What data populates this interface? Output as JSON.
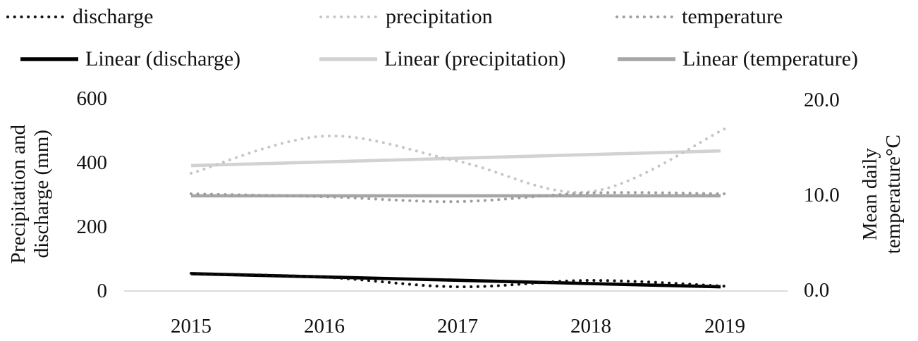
{
  "legend": {
    "items": [
      {
        "label": "discharge",
        "color": "#111111",
        "style": "dotted"
      },
      {
        "label": "precipitation",
        "color": "#c6c6c6",
        "style": "dotted"
      },
      {
        "label": "temperature",
        "color": "#9e9e9e",
        "style": "dotted"
      },
      {
        "label": "Linear (discharge)",
        "color": "#000000",
        "style": "solid"
      },
      {
        "label": "Linear (precipitation)",
        "color": "#d2d2d2",
        "style": "solid"
      },
      {
        "label": "Linear (temperature)",
        "color": "#a6a6a6",
        "style": "solid"
      }
    ]
  },
  "chart_data": {
    "type": "line",
    "x_labels": [
      "2015",
      "2016",
      "2017",
      "2018",
      "2019"
    ],
    "left_axis": {
      "title": "Precipitation and discharge (mm)",
      "title_lines": [
        "Precipitation and",
        "discharge (mm)"
      ],
      "range": [
        0,
        600
      ],
      "tick_labels": [
        "600",
        "400",
        "200",
        "0"
      ]
    },
    "right_axis": {
      "title": "Mean daily temperature°C",
      "title_lines": [
        "Mean daily",
        "temperature°C"
      ],
      "range": [
        0,
        20
      ],
      "tick_labels": [
        "20.0",
        "10.0",
        "0.0"
      ]
    },
    "grid": false,
    "legend_position": "top",
    "baseline_color": "#dcdcdc",
    "series": [
      {
        "name": "discharge",
        "axis": "left",
        "style": "dotted",
        "smooth": true,
        "trend": false,
        "color": "#111111",
        "values": [
          55,
          43,
          13,
          33,
          15
        ]
      },
      {
        "name": "precipitation",
        "axis": "left",
        "style": "dotted",
        "smooth": true,
        "trend": false,
        "color": "#c6c6c6",
        "values": [
          367,
          483,
          405,
          310,
          506
        ]
      },
      {
        "name": "temperature",
        "axis": "right",
        "style": "dotted",
        "smooth": true,
        "trend": false,
        "color": "#9e9e9e",
        "values": [
          10.1,
          9.8,
          9.3,
          10.2,
          10.1
        ]
      },
      {
        "name": "Linear (discharge)",
        "axis": "left",
        "style": "solid",
        "smooth": false,
        "trend": true,
        "color": "#000000",
        "values": [
          54,
          13
        ]
      },
      {
        "name": "Linear (precipitation)",
        "axis": "left",
        "style": "solid",
        "smooth": false,
        "trend": true,
        "color": "#d2d2d2",
        "values": [
          391,
          437
        ]
      },
      {
        "name": "Linear (temperature)",
        "axis": "right",
        "style": "solid",
        "smooth": false,
        "trend": true,
        "color": "#a6a6a6",
        "values": [
          9.9,
          9.9
        ]
      }
    ]
  }
}
